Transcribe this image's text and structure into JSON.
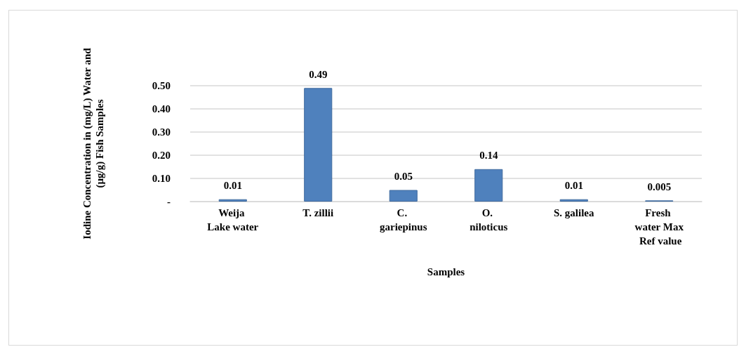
{
  "chart_data": {
    "type": "bar",
    "xlabel": "Samples",
    "ylabel": "Iodine Concentration in (mg/L) Water and (µg/g) Fish Samples",
    "categories": [
      "Weija Lake water",
      "T. zillii",
      "C. gariepinus",
      "O. niloticus",
      "S. galilea",
      "Fresh water Max Ref value"
    ],
    "values": [
      0.01,
      0.49,
      0.05,
      0.14,
      0.01,
      0.005
    ],
    "color": "#4f81bd",
    "ylim": [
      0,
      0.5
    ],
    "yticks": [
      {
        "value": 0,
        "label": "-"
      },
      {
        "value": 0.1,
        "label": "0.10"
      },
      {
        "value": 0.2,
        "label": "0.20"
      },
      {
        "value": 0.3,
        "label": "0.30"
      },
      {
        "value": 0.4,
        "label": "0.40"
      },
      {
        "value": 0.5,
        "label": "0.50"
      }
    ],
    "grid": "y",
    "data_labels": true
  }
}
